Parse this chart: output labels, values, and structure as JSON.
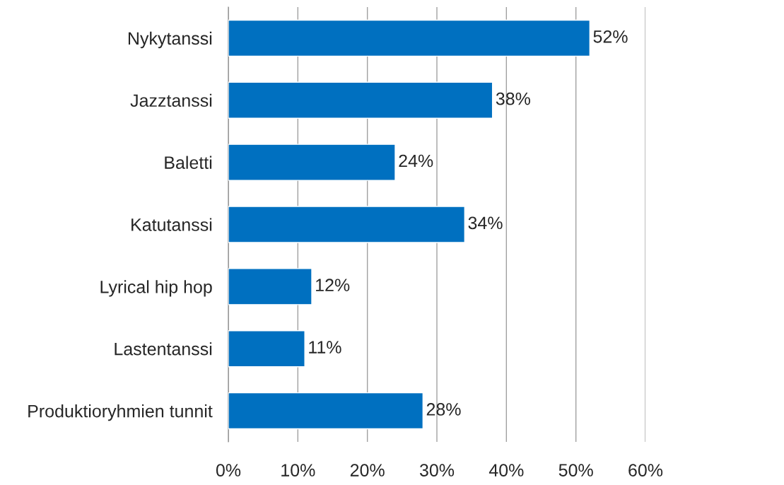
{
  "chart_data": {
    "type": "bar",
    "orientation": "horizontal",
    "categories": [
      "Nykytanssi",
      "Jazztanssi",
      "Baletti",
      "Katutanssi",
      "Lyrical hip hop",
      "Lastentanssi",
      "Produktioryhmien tunnit"
    ],
    "values": [
      52,
      38,
      24,
      34,
      12,
      11,
      28
    ],
    "value_labels": [
      "52%",
      "38%",
      "24%",
      "34%",
      "12%",
      "11%",
      "28%"
    ],
    "color": "#0070c0",
    "xlim": [
      0,
      60
    ],
    "xticks": [
      {
        "value": 0,
        "label": "0%"
      },
      {
        "value": 10,
        "label": "10%"
      },
      {
        "value": 20,
        "label": "20%"
      },
      {
        "value": 30,
        "label": "30%"
      },
      {
        "value": 40,
        "label": "40%"
      },
      {
        "value": 50,
        "label": "50%"
      },
      {
        "value": 60,
        "label": "60%"
      }
    ],
    "grid": "x",
    "legend": false
  }
}
